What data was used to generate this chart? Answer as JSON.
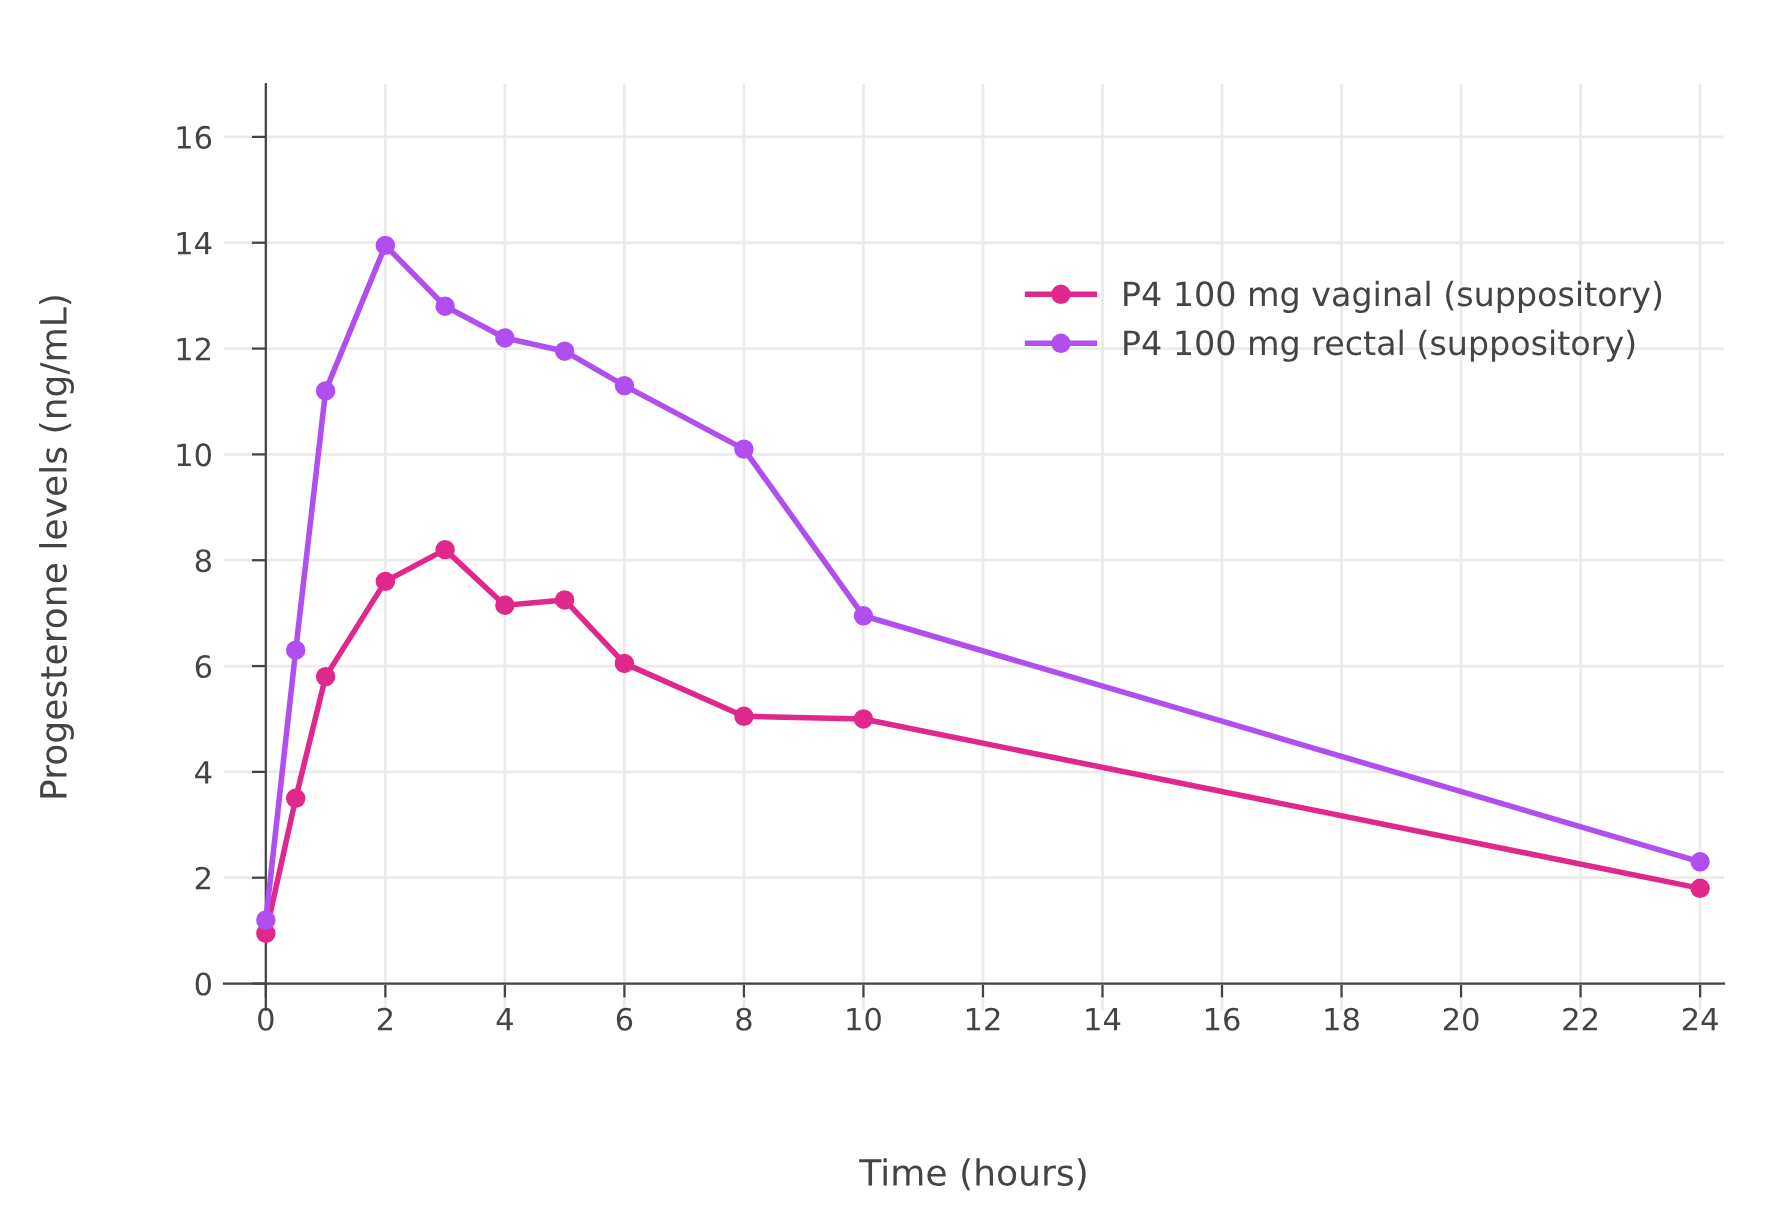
{
  "chart_data": {
    "type": "line",
    "xlabel": "Time (hours)",
    "ylabel": "Progesterone levels (ng/mL)",
    "x": [
      0,
      0.5,
      1,
      2,
      3,
      4,
      5,
      6,
      8,
      10,
      24
    ],
    "series": [
      {
        "name": "P4 100 mg vaginal (suppository)",
        "color": "#e0288c",
        "values": [
          0.95,
          3.5,
          5.8,
          7.6,
          8.2,
          7.15,
          7.25,
          6.05,
          5.05,
          5.0,
          1.8
        ]
      },
      {
        "name": "P4 100 mg rectal (suppository)",
        "color": "#b04ef0",
        "values": [
          1.2,
          6.3,
          11.2,
          13.95,
          12.8,
          12.2,
          11.95,
          11.3,
          10.1,
          6.95,
          2.3
        ]
      }
    ],
    "xlim": [
      -0.7,
      24.4
    ],
    "ylim": [
      -0.5,
      17
    ],
    "xticks": [
      0,
      2,
      4,
      6,
      8,
      10,
      12,
      14,
      16,
      18,
      20,
      22,
      24
    ],
    "yticks": [
      0,
      2,
      4,
      6,
      8,
      10,
      12,
      14,
      16
    ],
    "grid": true,
    "legend": "top right",
    "marker": "circle",
    "line_style": "solid"
  }
}
